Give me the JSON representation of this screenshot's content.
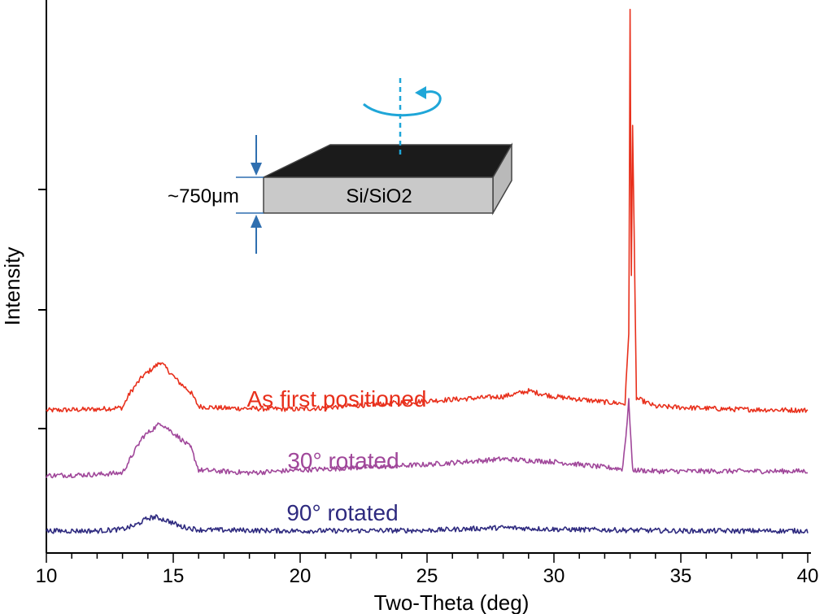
{
  "chart_data": {
    "type": "line",
    "xlabel": "Two-Theta (deg)",
    "ylabel": "Intensity",
    "xlim": [
      10,
      40
    ],
    "ylim": [
      0,
      100
    ],
    "x_ticks": [
      10,
      15,
      20,
      25,
      30,
      35,
      40
    ],
    "grid": false,
    "legend": "none",
    "series": [
      {
        "name": "As first positioned",
        "color": "#e8301c",
        "x": [
          10,
          12,
          13,
          13.3,
          13.8,
          14.5,
          15.2,
          15.7,
          16,
          17,
          20,
          25,
          28,
          29,
          30,
          32,
          32.8,
          32.95,
          33.0,
          33.05,
          33.1,
          33.25,
          34,
          37,
          40
        ],
        "y": [
          25.8,
          26,
          26.3,
          29,
          32,
          34.5,
          31,
          29,
          26.5,
          26.2,
          26,
          27.5,
          28.3,
          29.3,
          28.3,
          27.3,
          27,
          40,
          98,
          50,
          77.5,
          28,
          26.5,
          26,
          25.8
        ]
      },
      {
        "name": "30° rotated",
        "color": "#a0479a",
        "x": [
          10,
          12,
          13,
          13.3,
          13.8,
          14.5,
          15.2,
          15.7,
          16,
          18,
          20,
          25,
          28,
          30,
          32,
          32.7,
          32.85,
          32.95,
          33.1,
          34,
          37,
          40
        ],
        "y": [
          14,
          14.2,
          14.5,
          17,
          21,
          23.5,
          21,
          19,
          15,
          14.5,
          15,
          16,
          17,
          16.5,
          15.5,
          15.2,
          22,
          27.5,
          15,
          14.8,
          14.8,
          14.8
        ]
      },
      {
        "name": "90° rotated",
        "color": "#2e2a7f",
        "x": [
          10,
          12,
          13,
          13.5,
          14,
          14.3,
          14.8,
          15.3,
          16,
          20,
          25,
          28,
          30,
          35,
          40
        ],
        "y": [
          4,
          4,
          4.3,
          5,
          6.3,
          6.5,
          5.8,
          4.8,
          4.2,
          4,
          4.1,
          4.6,
          4.3,
          4,
          4
        ]
      }
    ]
  },
  "inset": {
    "sample_label": "Si/SiO2",
    "thickness_label": "~750μm",
    "top_color": "#1b1b1b",
    "side_color": "#c9c9c9",
    "arrow_color": "#2f6fb0",
    "rotation_color": "#1fa6d8"
  }
}
